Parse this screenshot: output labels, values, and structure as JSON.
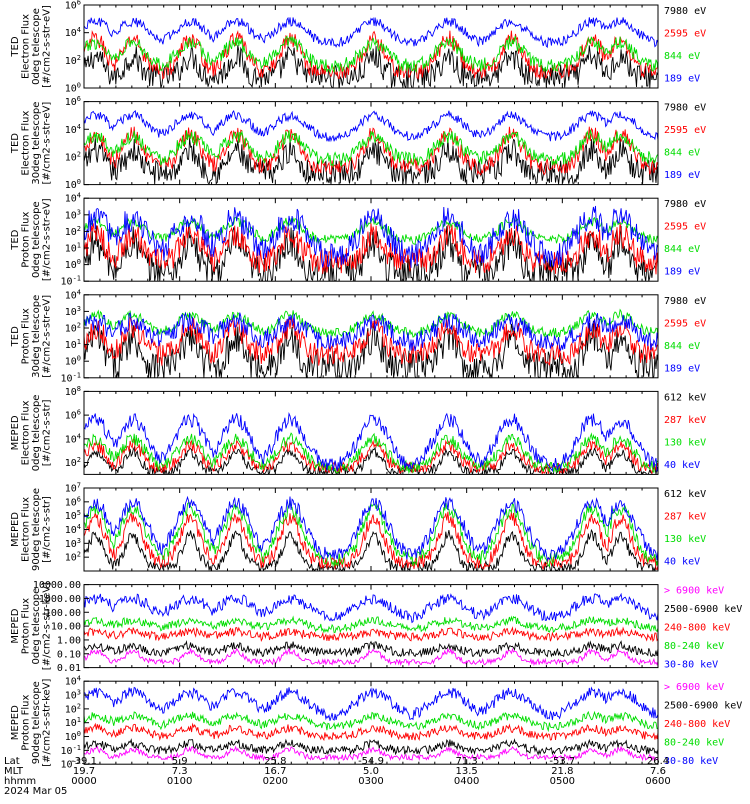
{
  "colors": {
    "blue": "#0000ff",
    "red": "#ff0000",
    "green": "#00dd00",
    "black": "#000000",
    "magenta": "#ff00ff"
  },
  "time_ticks": [
    "0000",
    "0100",
    "0200",
    "0300",
    "0400",
    "0500",
    "0600"
  ],
  "footer": {
    "row_labels": [
      "Lat",
      "MLT",
      "hhmm",
      "2024 Mar 05"
    ],
    "lat": [
      "-39.1",
      "5.9",
      "25.8",
      "-54.9",
      "71.3",
      "-53.7",
      "26.4"
    ],
    "mlt": [
      "19.7",
      "7.3",
      "16.7",
      "5.0",
      "13.5",
      "21.8",
      "7.6"
    ]
  },
  "chart_data": [
    {
      "type": "line",
      "ylabel_lines": [
        "TED",
        "Electron Flux",
        "0deg telescope",
        "[#/cm2-s-str-eV]"
      ],
      "yscale": "log",
      "y_tick_exps": [
        0,
        2,
        4,
        6
      ],
      "ylim": [
        1,
        1000000
      ],
      "series": [
        {
          "name": "7980 eV",
          "color": "black"
        },
        {
          "name": "2595 eV",
          "color": "red"
        },
        {
          "name": "844 eV",
          "color": "green"
        },
        {
          "name": "189 eV",
          "color": "blue"
        }
      ]
    },
    {
      "type": "line",
      "ylabel_lines": [
        "TED",
        "Electron Flux",
        "30deg telescope",
        "[#/cm2-s-str-eV]"
      ],
      "yscale": "log",
      "y_tick_exps": [
        0,
        2,
        4,
        6
      ],
      "ylim": [
        1,
        1000000
      ],
      "series": [
        {
          "name": "7980 eV",
          "color": "black"
        },
        {
          "name": "2595 eV",
          "color": "red"
        },
        {
          "name": "844 eV",
          "color": "green"
        },
        {
          "name": "189 eV",
          "color": "blue"
        }
      ]
    },
    {
      "type": "line",
      "ylabel_lines": [
        "TED",
        "Proton Flux",
        "0deg telescope",
        "[#/cm2-s-str-eV]"
      ],
      "yscale": "log",
      "y_tick_exps": [
        -1,
        0,
        1,
        2,
        3,
        4
      ],
      "ylim": [
        0.1,
        10000
      ],
      "series": [
        {
          "name": "7980 eV",
          "color": "black"
        },
        {
          "name": "2595 eV",
          "color": "red"
        },
        {
          "name": "844 eV",
          "color": "green"
        },
        {
          "name": "189 eV",
          "color": "blue"
        }
      ]
    },
    {
      "type": "line",
      "ylabel_lines": [
        "TED",
        "Proton Flux",
        "30deg telescope",
        "[#/cm2-s-str-eV]"
      ],
      "yscale": "log",
      "y_tick_exps": [
        -1,
        0,
        1,
        2,
        3,
        4
      ],
      "ylim": [
        0.1,
        10000
      ],
      "series": [
        {
          "name": "7980 eV",
          "color": "black"
        },
        {
          "name": "2595 eV",
          "color": "red"
        },
        {
          "name": "844 eV",
          "color": "green"
        },
        {
          "name": "189 eV",
          "color": "blue"
        }
      ]
    },
    {
      "type": "line",
      "ylabel_lines": [
        "MEPED",
        "Electron Flux",
        "0deg telescope",
        "[#/cm2-s-str]"
      ],
      "yscale": "log",
      "y_tick_exps": [
        2,
        4,
        6,
        8
      ],
      "ylim": [
        10,
        100000000
      ],
      "series": [
        {
          "name": "612 keV",
          "color": "black"
        },
        {
          "name": "287 keV",
          "color": "red"
        },
        {
          "name": "130 keV",
          "color": "green"
        },
        {
          "name": "40 keV",
          "color": "blue"
        }
      ]
    },
    {
      "type": "line",
      "ylabel_lines": [
        "MEPED",
        "Electron Flux",
        "90deg telescope",
        "[#/cm2-s-str]"
      ],
      "yscale": "log",
      "y_tick_exps": [
        2,
        3,
        4,
        5,
        6,
        7
      ],
      "ylim": [
        10,
        10000000
      ],
      "series": [
        {
          "name": "612 keV",
          "color": "black"
        },
        {
          "name": "287 keV",
          "color": "red"
        },
        {
          "name": "130 keV",
          "color": "green"
        },
        {
          "name": "40 keV",
          "color": "blue"
        }
      ]
    },
    {
      "type": "line",
      "ylabel_lines": [
        "MEPED",
        "Proton Flux",
        "0deg telescope",
        "[#/cm2-s-str-keV]"
      ],
      "yscale": "log",
      "y_tick_labels": [
        "10000.00",
        "1000.00",
        "100.00",
        "10.00",
        "1.00",
        "0.10",
        "0.01"
      ],
      "ylim": [
        0.01,
        10000
      ],
      "series": [
        {
          "name": "> 6900 keV",
          "color": "magenta"
        },
        {
          "name": "2500-6900 keV",
          "color": "black"
        },
        {
          "name": "240-800 keV",
          "color": "red"
        },
        {
          "name": "80-240 keV",
          "color": "green"
        },
        {
          "name": "30-80 keV",
          "color": "blue"
        }
      ]
    },
    {
      "type": "line",
      "ylabel_lines": [
        "MEPED",
        "Proton Flux",
        "90deg telescope",
        "[#/cm2-s-str-keV]"
      ],
      "yscale": "log",
      "y_tick_exps": [
        -2,
        -1,
        0,
        1,
        2,
        3,
        4
      ],
      "ylim": [
        0.01,
        10000
      ],
      "series": [
        {
          "name": "> 6900 keV",
          "color": "magenta"
        },
        {
          "name": "2500-6900 keV",
          "color": "black"
        },
        {
          "name": "240-800 keV",
          "color": "red"
        },
        {
          "name": "80-240 keV",
          "color": "green"
        },
        {
          "name": "30-80 keV",
          "color": "blue"
        }
      ]
    }
  ]
}
